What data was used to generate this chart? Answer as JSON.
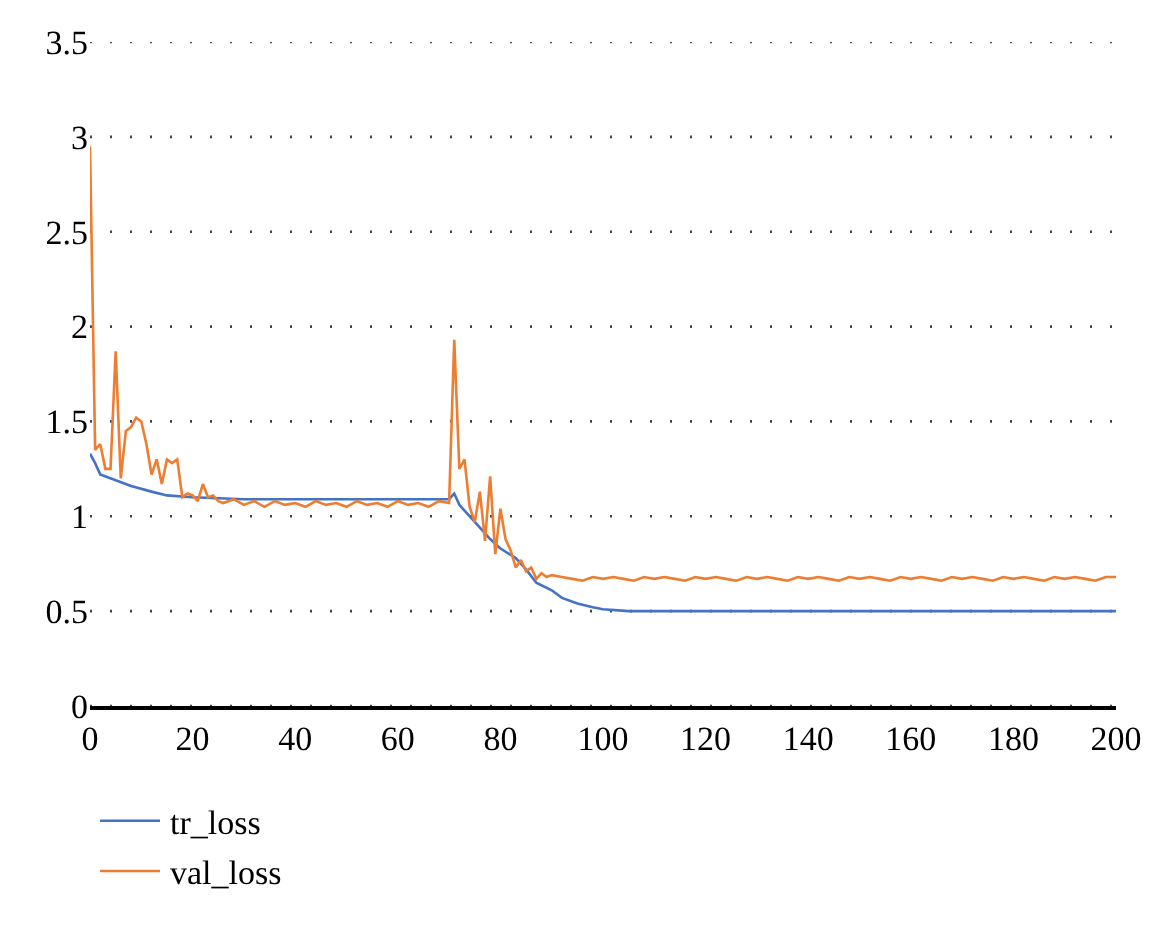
{
  "chart_data": {
    "type": "line",
    "xlim": [
      0,
      200
    ],
    "xticks": [
      0,
      20,
      40,
      60,
      80,
      100,
      120,
      140,
      160,
      180,
      200
    ],
    "ylim": [
      0,
      3.5
    ],
    "yticks": [
      0,
      0.5,
      1,
      1.5,
      2,
      2.5,
      3,
      3.5
    ],
    "grid": "y",
    "legend": "bottom left",
    "line_style": "solid",
    "series": [
      {
        "name": "tr_loss",
        "color": "#4472c4",
        "x": [
          0,
          1,
          2,
          5,
          8,
          12,
          15,
          20,
          30,
          70,
          71,
          72,
          75,
          78,
          80,
          83,
          85,
          87,
          90,
          92,
          95,
          98,
          100,
          105,
          200
        ],
        "values": [
          1.33,
          1.28,
          1.22,
          1.19,
          1.16,
          1.13,
          1.11,
          1.1,
          1.09,
          1.09,
          1.12,
          1.06,
          0.97,
          0.88,
          0.83,
          0.78,
          0.72,
          0.65,
          0.61,
          0.57,
          0.54,
          0.52,
          0.51,
          0.5,
          0.5
        ]
      },
      {
        "name": "val_loss",
        "color": "#ed7d31",
        "x": [
          0,
          1,
          2,
          3,
          4,
          5,
          6,
          7,
          8,
          9,
          10,
          11,
          12,
          13,
          14,
          15,
          16,
          17,
          18,
          19,
          20,
          21,
          22,
          23,
          24,
          25,
          26,
          28,
          30,
          32,
          34,
          36,
          38,
          40,
          42,
          44,
          46,
          48,
          50,
          52,
          54,
          56,
          58,
          60,
          62,
          64,
          66,
          68,
          70,
          71,
          72,
          73,
          74,
          75,
          76,
          77,
          78,
          79,
          80,
          81,
          82,
          83,
          84,
          85,
          86,
          87,
          88,
          89,
          90,
          92,
          94,
          96,
          98,
          100,
          102,
          104,
          106,
          108,
          110,
          112,
          114,
          116,
          118,
          120,
          122,
          124,
          126,
          128,
          130,
          132,
          134,
          136,
          138,
          140,
          142,
          144,
          146,
          148,
          150,
          152,
          154,
          156,
          158,
          160,
          162,
          164,
          166,
          168,
          170,
          172,
          174,
          176,
          178,
          180,
          182,
          184,
          186,
          188,
          190,
          192,
          194,
          196,
          198,
          200
        ],
        "values": [
          2.95,
          1.35,
          1.38,
          1.25,
          1.25,
          1.87,
          1.2,
          1.45,
          1.47,
          1.52,
          1.5,
          1.38,
          1.22,
          1.3,
          1.17,
          1.3,
          1.28,
          1.3,
          1.1,
          1.12,
          1.11,
          1.08,
          1.17,
          1.1,
          1.11,
          1.08,
          1.07,
          1.09,
          1.06,
          1.08,
          1.05,
          1.08,
          1.06,
          1.07,
          1.05,
          1.08,
          1.06,
          1.07,
          1.05,
          1.08,
          1.06,
          1.07,
          1.05,
          1.08,
          1.06,
          1.07,
          1.05,
          1.08,
          1.07,
          1.93,
          1.25,
          1.3,
          1.05,
          0.97,
          1.13,
          0.87,
          1.21,
          0.8,
          1.04,
          0.88,
          0.82,
          0.73,
          0.77,
          0.71,
          0.73,
          0.67,
          0.7,
          0.68,
          0.69,
          0.68,
          0.67,
          0.66,
          0.68,
          0.67,
          0.68,
          0.67,
          0.66,
          0.68,
          0.67,
          0.68,
          0.67,
          0.66,
          0.68,
          0.67,
          0.68,
          0.67,
          0.66,
          0.68,
          0.67,
          0.68,
          0.67,
          0.66,
          0.68,
          0.67,
          0.68,
          0.67,
          0.66,
          0.68,
          0.67,
          0.68,
          0.67,
          0.66,
          0.68,
          0.67,
          0.68,
          0.67,
          0.66,
          0.68,
          0.67,
          0.68,
          0.67,
          0.66,
          0.68,
          0.67,
          0.68,
          0.67,
          0.66,
          0.68,
          0.67,
          0.68,
          0.67,
          0.66,
          0.68,
          0.68
        ]
      }
    ]
  }
}
